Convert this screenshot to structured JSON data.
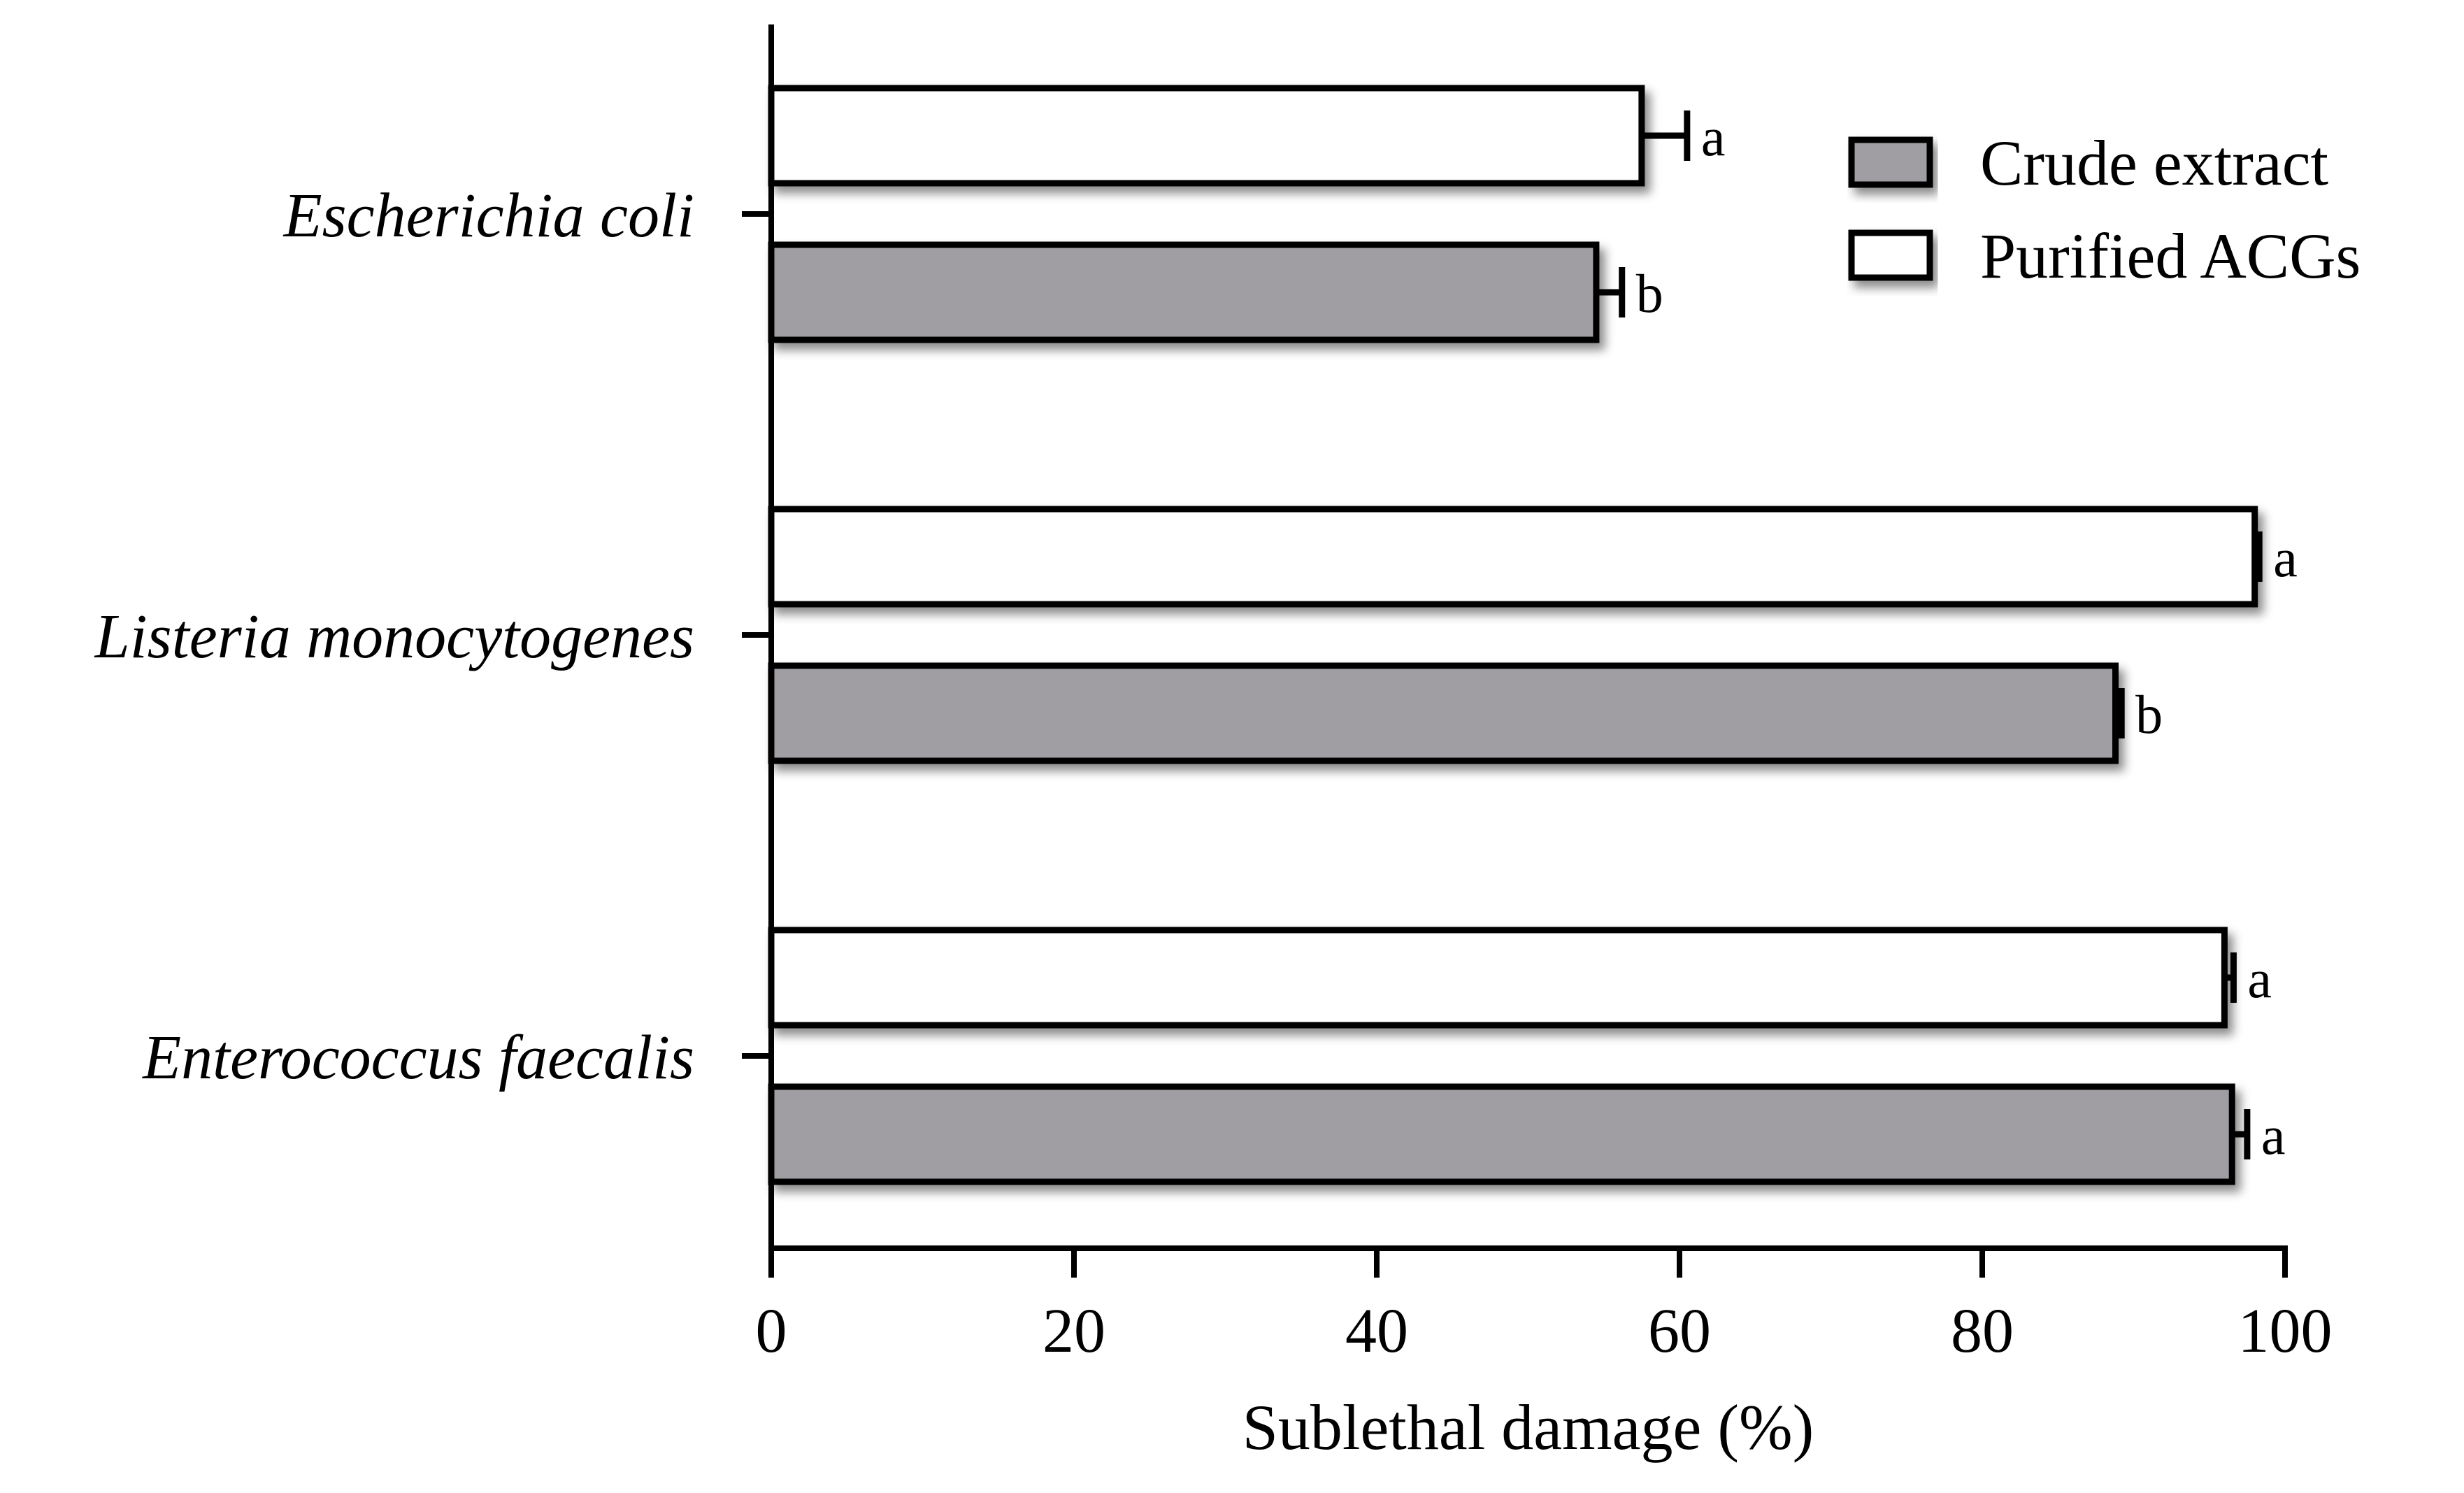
{
  "chart_data": {
    "type": "bar",
    "orientation": "horizontal",
    "categories": [
      "Escherichia coli",
      "Listeria monocytogenes",
      "Enterococcus faecalis"
    ],
    "series": [
      {
        "name": "Crude extract",
        "color": "#a09ea3",
        "values": [
          54.5,
          88.8,
          96.5
        ],
        "errors": [
          1.7,
          0.4,
          1.0
        ],
        "letters": [
          "b",
          "b",
          "a"
        ]
      },
      {
        "name": "Purified ACGs",
        "color": "#ffffff",
        "values": [
          57.5,
          98.0,
          96.0
        ],
        "errors": [
          3.0,
          0.3,
          0.6
        ],
        "letters": [
          "a",
          "a",
          "a"
        ]
      }
    ],
    "xlabel": "Sublethal damage (%)",
    "ylabel": "",
    "xlim": [
      0,
      100
    ],
    "xticks": [
      "0",
      "20",
      "40",
      "60",
      "80",
      "100"
    ],
    "grid": false,
    "legend_position": "top-right",
    "category_label_style": "italic"
  }
}
